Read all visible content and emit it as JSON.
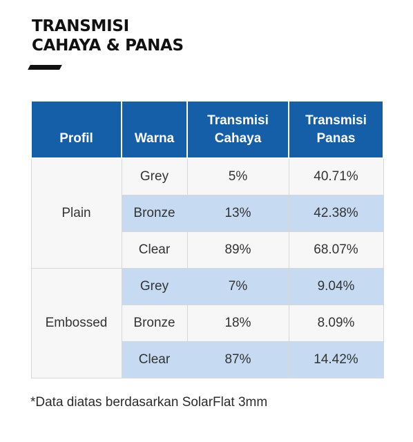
{
  "title": {
    "line1": "TRANSMISI",
    "line2": "CAHAYA & PANAS"
  },
  "table": {
    "headers": {
      "profil": "Profil",
      "warna": "Warna",
      "cahaya_line1": "Transmisi",
      "cahaya_line2": "Cahaya",
      "panas_line1": "Transmisi",
      "panas_line2": "Panas"
    },
    "groups": [
      {
        "profile": "Plain",
        "rows": [
          {
            "warna": "Grey",
            "cahaya": "5%",
            "panas": "40.71%"
          },
          {
            "warna": "Bronze",
            "cahaya": "13%",
            "panas": "42.38%"
          },
          {
            "warna": "Clear",
            "cahaya": "89%",
            "panas": "68.07%"
          }
        ]
      },
      {
        "profile": "Embossed",
        "rows": [
          {
            "warna": "Grey",
            "cahaya": "7%",
            "panas": "9.04%"
          },
          {
            "warna": "Bronze",
            "cahaya": "18%",
            "panas": "8.09%"
          },
          {
            "warna": "Clear",
            "cahaya": "87%",
            "panas": "14.42%"
          }
        ]
      }
    ]
  },
  "footnote": "*Data diatas berdasarkan SolarFlat 3mm",
  "colors": {
    "header": "#155fa8",
    "shaded_row": "#c6daf2",
    "plain_row": "#f7f7f7"
  }
}
